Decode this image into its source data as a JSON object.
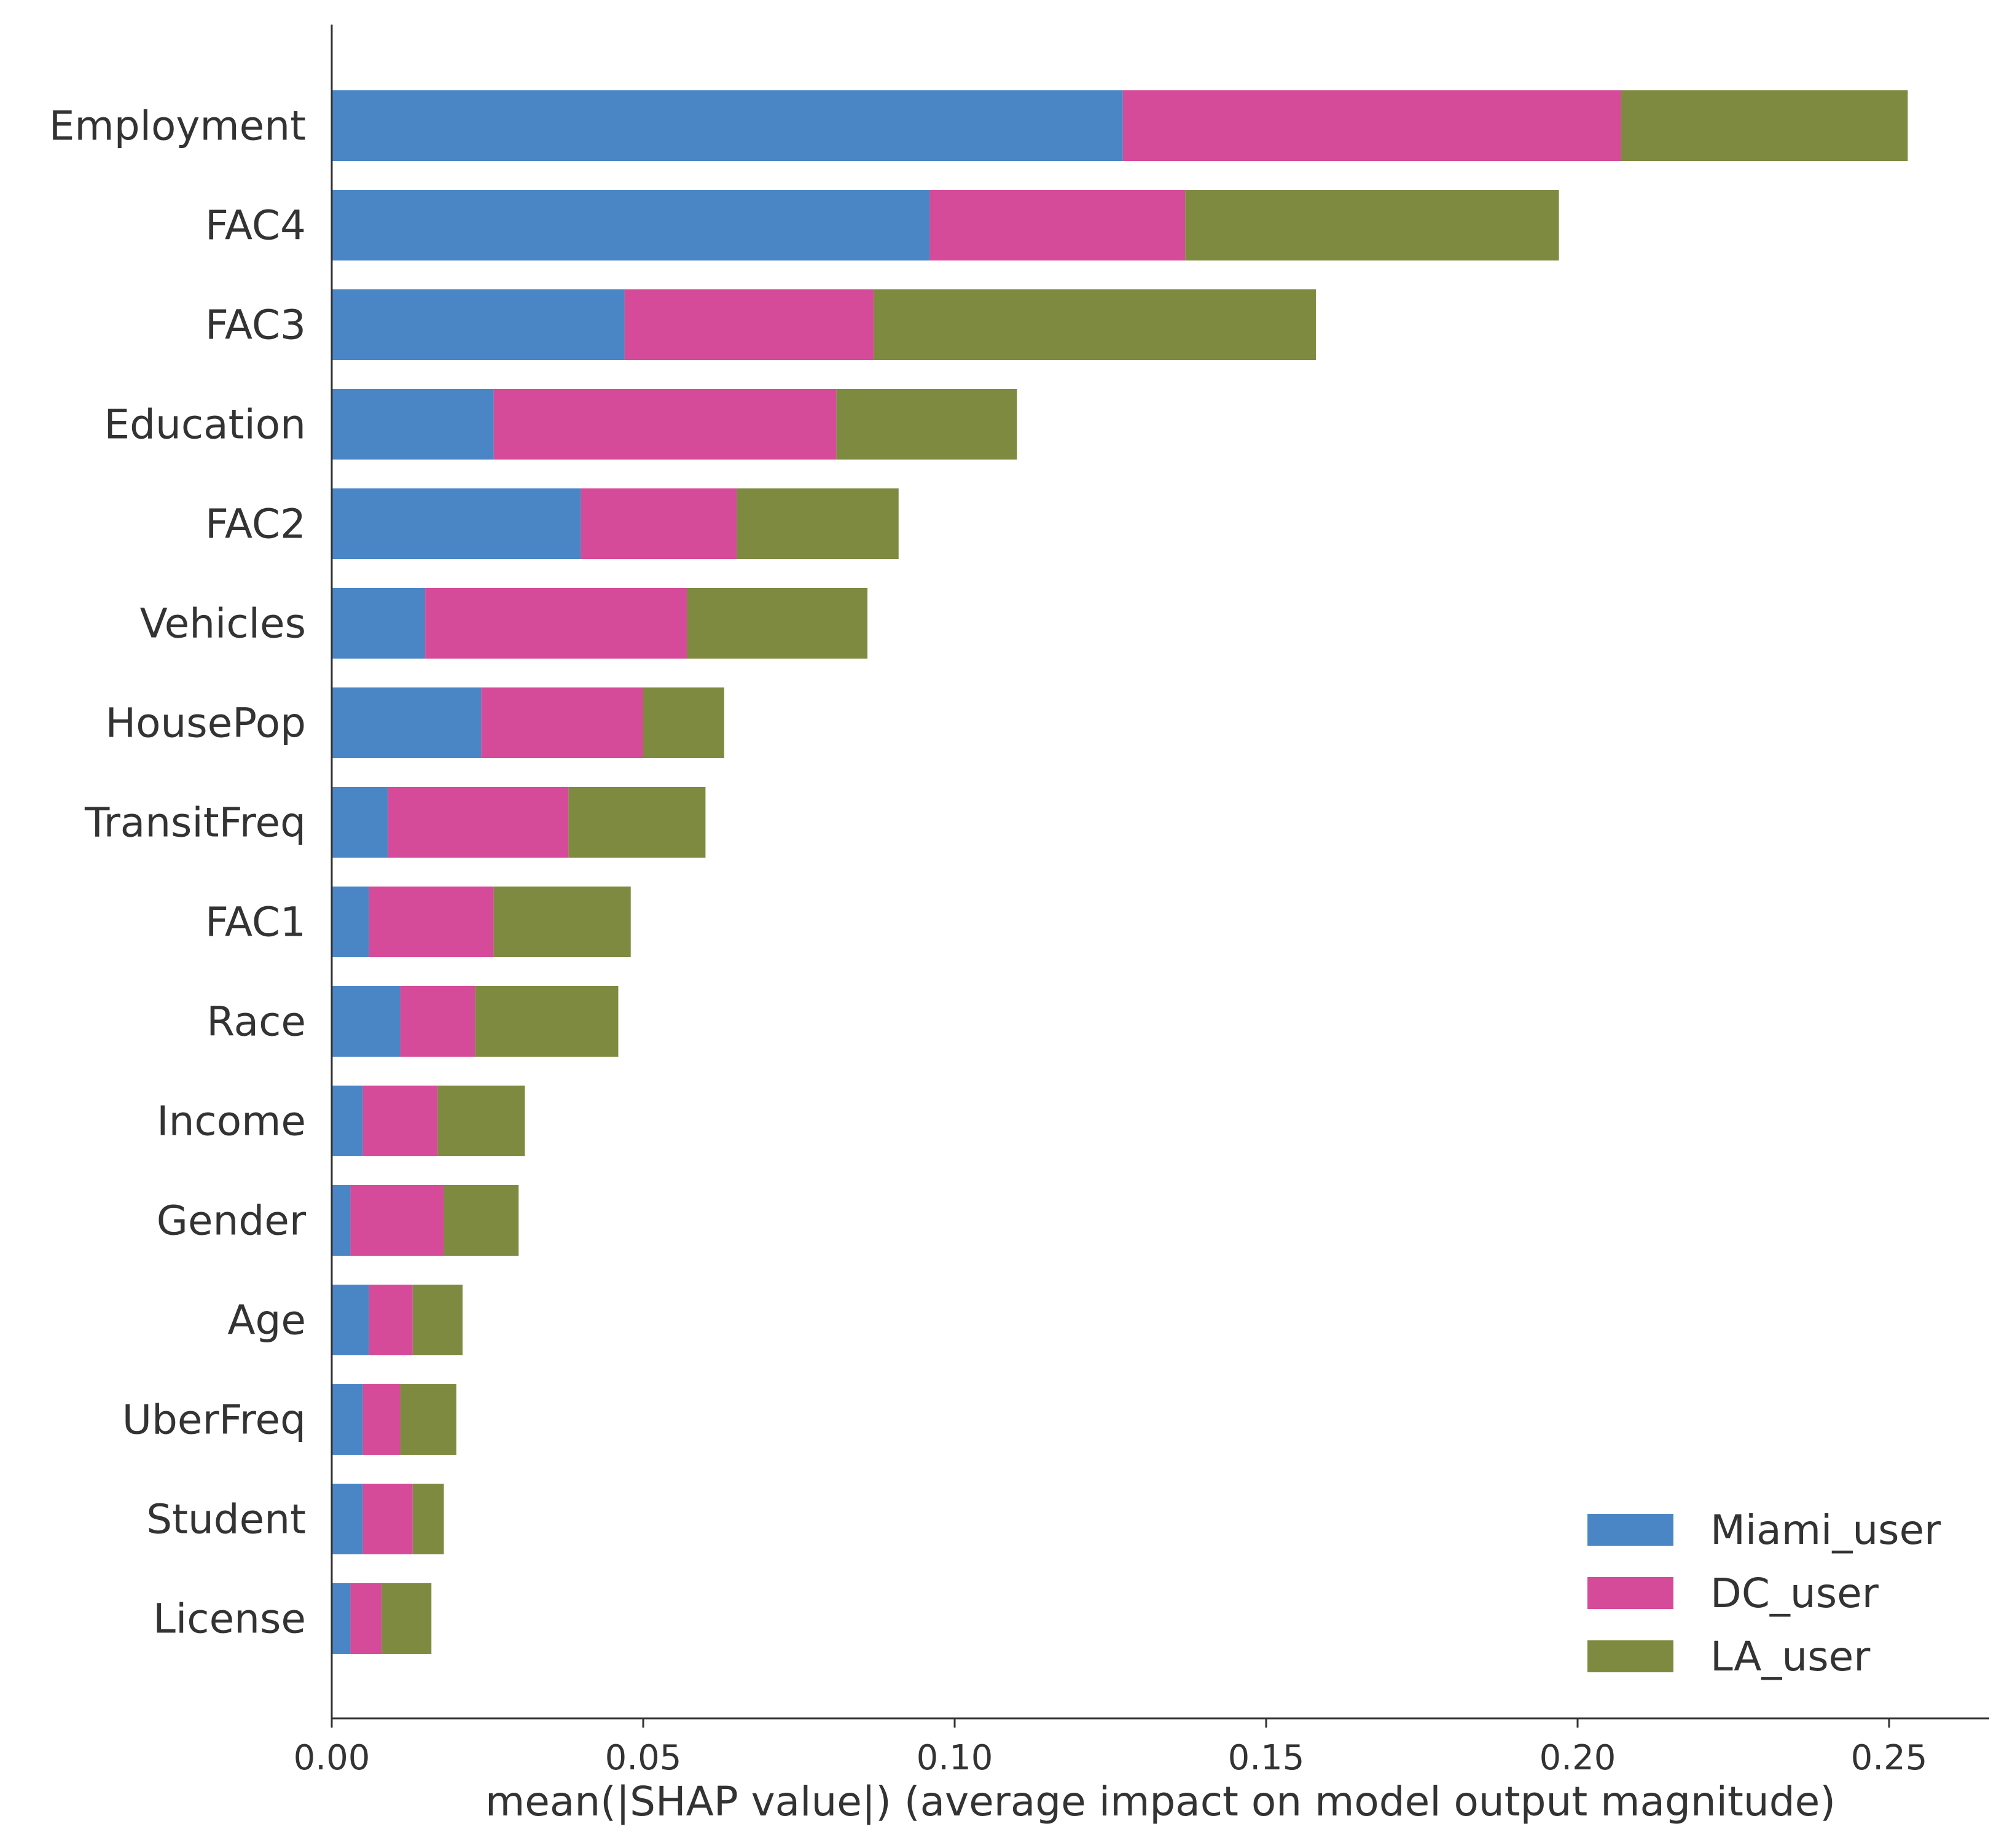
{
  "chart_data": {
    "type": "bar",
    "orientation": "horizontal",
    "stacked": true,
    "categories": [
      "Employment",
      "FAC4",
      "FAC3",
      "Education",
      "FAC2",
      "Vehicles",
      "HousePop",
      "TransitFreq",
      "FAC1",
      "Race",
      "Income",
      "Gender",
      "Age",
      "UberFreq",
      "Student",
      "License"
    ],
    "series": [
      {
        "name": "Miami_user",
        "color": "#4a86c5",
        "values": [
          0.127,
          0.096,
          0.047,
          0.026,
          0.04,
          0.015,
          0.024,
          0.009,
          0.006,
          0.011,
          0.005,
          0.003,
          0.006,
          0.005,
          0.005,
          0.003
        ]
      },
      {
        "name": "DC_user",
        "color": "#d54b99",
        "values": [
          0.08,
          0.041,
          0.04,
          0.055,
          0.025,
          0.042,
          0.026,
          0.029,
          0.02,
          0.012,
          0.012,
          0.015,
          0.007,
          0.006,
          0.008,
          0.005
        ]
      },
      {
        "name": "LA_user",
        "color": "#7f8a41",
        "values": [
          0.046,
          0.06,
          0.071,
          0.029,
          0.026,
          0.029,
          0.013,
          0.022,
          0.022,
          0.023,
          0.014,
          0.012,
          0.008,
          0.009,
          0.005,
          0.008
        ]
      }
    ],
    "xlabel": "mean(|SHAP value|) (average impact on model output magnitude)",
    "ylabel": "",
    "xlim": [
      0,
      0.266
    ],
    "xticks": [
      0.0,
      0.05,
      0.1,
      0.15,
      0.2,
      0.25
    ],
    "xtick_labels": [
      "0.00",
      "0.05",
      "0.10",
      "0.15",
      "0.20",
      "0.25"
    ],
    "grid": false,
    "legend": "bottom-right"
  }
}
